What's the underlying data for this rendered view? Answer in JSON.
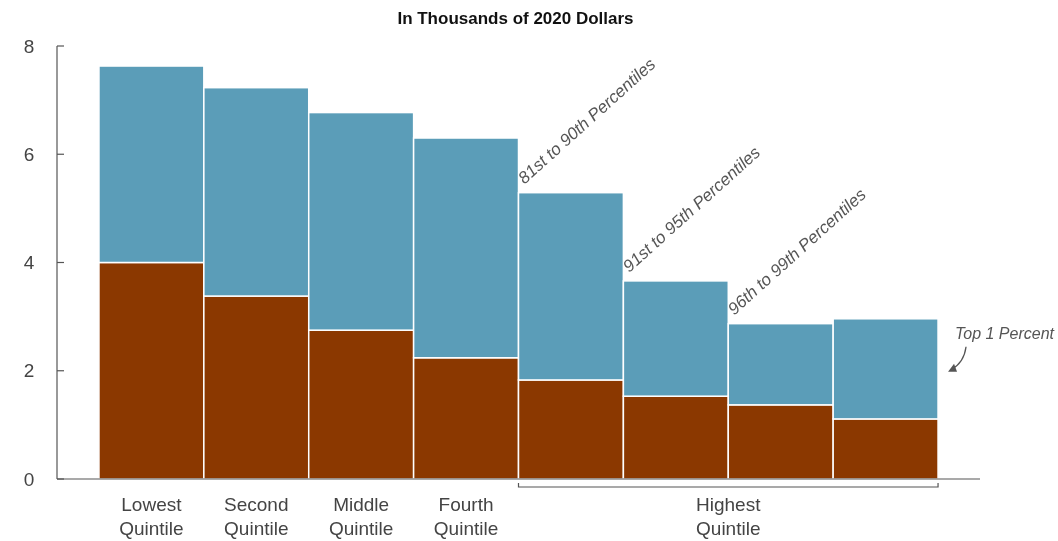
{
  "chart_data": {
    "type": "bar",
    "title": "In Thousands of 2020 Dollars",
    "stacked": true,
    "categories": [
      "Lowest Quintile",
      "Second Quintile",
      "Middle Quintile",
      "Fourth Quintile",
      null,
      null,
      null,
      null
    ],
    "series": [
      {
        "color": "#8b3800",
        "values": [
          4.0,
          3.38,
          2.75,
          2.24,
          1.83,
          1.53,
          1.37,
          1.11
        ]
      },
      {
        "color": "#5b9db8",
        "values": [
          3.63,
          3.85,
          4.02,
          4.06,
          3.46,
          2.13,
          1.5,
          1.85
        ]
      }
    ],
    "ylim": [
      0,
      8
    ],
    "yticks": [
      0,
      2,
      4,
      6,
      8
    ],
    "annotations": [
      "Highest Quintile",
      {
        "text": "81st to 90th Percentiles",
        "y": 5.29
      },
      {
        "text": "91st to 95th Percentiles",
        "y": 3.66
      },
      {
        "text": "96th to 99th Percentiles",
        "y": 2.87
      },
      "Top 1 Percent"
    ]
  }
}
